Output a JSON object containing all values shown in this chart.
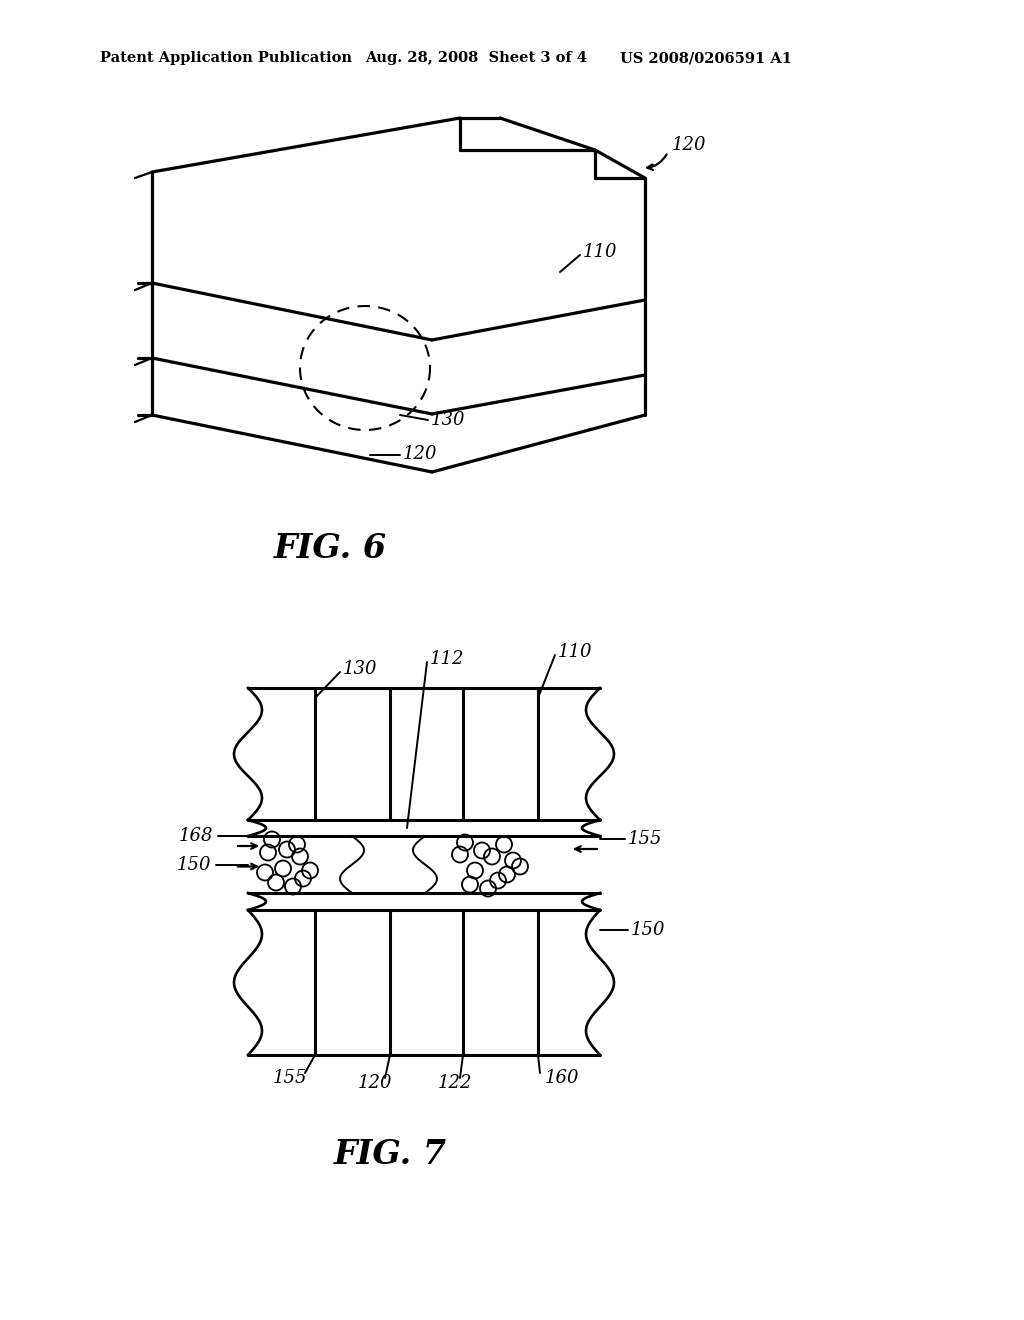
{
  "bg_color": "#ffffff",
  "header_left": "Patent Application Publication",
  "header_mid": "Aug. 28, 2008  Sheet 3 of 4",
  "header_right": "US 2008/0206591 A1",
  "fig6_label": "FIG. 6",
  "fig7_label": "FIG. 7"
}
